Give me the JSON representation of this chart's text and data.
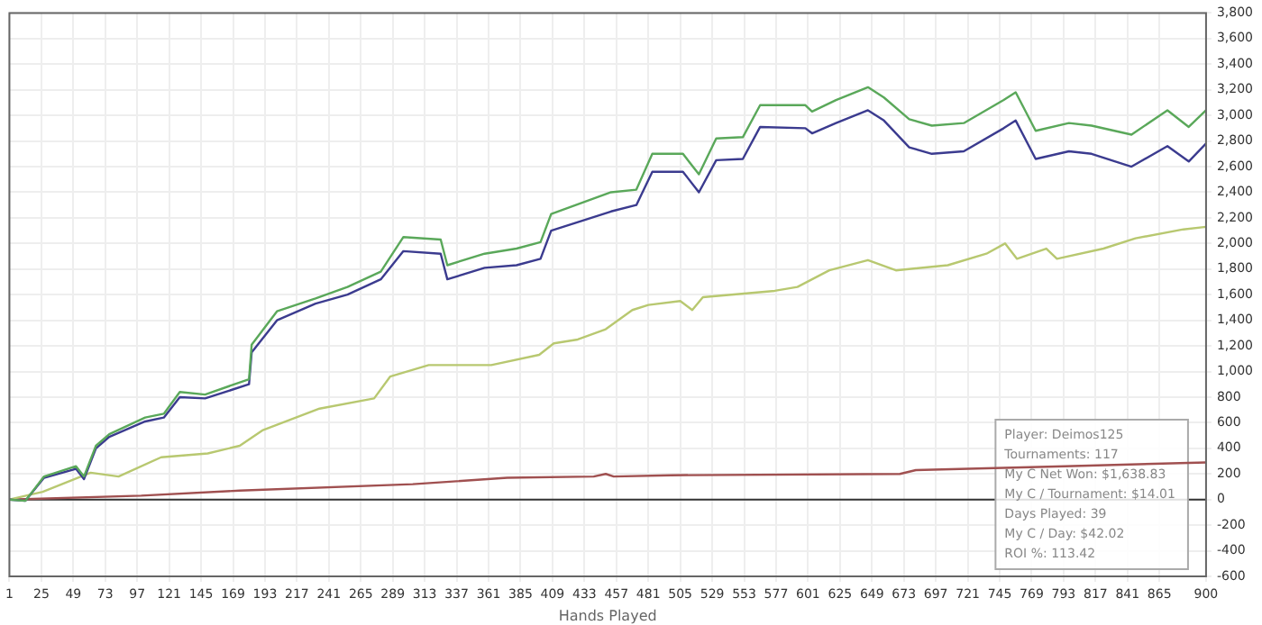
{
  "chart_data": {
    "type": "line",
    "xlabel": "Hands Played",
    "series": [
      {
        "color": "#5aa85a",
        "x": [
          1,
          13,
          27,
          51,
          57,
          66,
          76,
          103,
          117,
          129,
          148,
          181,
          183,
          202,
          231,
          255,
          280,
          297,
          325,
          330,
          358,
          382,
          400,
          408,
          453,
          472,
          484,
          507,
          519,
          532,
          552,
          565,
          599,
          604,
          622,
          646,
          658,
          677,
          694,
          718,
          748,
          757,
          772,
          797,
          814,
          844,
          871,
          887,
          900
        ],
        "values": [
          0,
          -10,
          180,
          260,
          180,
          420,
          510,
          640,
          670,
          840,
          820,
          940,
          1210,
          1470,
          1570,
          1660,
          1780,
          2050,
          2030,
          1830,
          1920,
          1960,
          2010,
          2230,
          2400,
          2420,
          2700,
          2700,
          2540,
          2820,
          2830,
          3080,
          3080,
          3030,
          3120,
          3220,
          3140,
          2970,
          2920,
          2940,
          3120,
          3180,
          2880,
          2940,
          2920,
          2850,
          3040,
          2910,
          3040
        ]
      },
      {
        "color": "#3b3b8f",
        "x": [
          1,
          13,
          27,
          51,
          57,
          66,
          76,
          103,
          117,
          129,
          148,
          181,
          183,
          202,
          231,
          255,
          280,
          297,
          325,
          330,
          358,
          382,
          400,
          408,
          453,
          472,
          484,
          507,
          519,
          532,
          552,
          565,
          599,
          604,
          622,
          646,
          658,
          677,
          694,
          718,
          748,
          757,
          772,
          797,
          814,
          844,
          871,
          887,
          900
        ],
        "values": [
          0,
          -10,
          170,
          240,
          160,
          400,
          490,
          610,
          640,
          800,
          790,
          900,
          1150,
          1400,
          1530,
          1600,
          1720,
          1940,
          1920,
          1720,
          1810,
          1830,
          1880,
          2100,
          2250,
          2300,
          2560,
          2560,
          2400,
          2650,
          2660,
          2910,
          2900,
          2860,
          2940,
          3040,
          2960,
          2750,
          2700,
          2720,
          2900,
          2960,
          2660,
          2720,
          2700,
          2600,
          2760,
          2640,
          2780
        ]
      },
      {
        "color": "#b8c870",
        "x": [
          1,
          26,
          62,
          83,
          115,
          150,
          174,
          191,
          234,
          275,
          287,
          316,
          363,
          399,
          410,
          428,
          449,
          469,
          481,
          505,
          514,
          522,
          576,
          593,
          617,
          646,
          667,
          706,
          735,
          749,
          758,
          780,
          788,
          823,
          847,
          883,
          900
        ],
        "values": [
          0,
          60,
          210,
          180,
          330,
          360,
          420,
          540,
          710,
          790,
          960,
          1050,
          1050,
          1130,
          1220,
          1250,
          1330,
          1480,
          1520,
          1550,
          1480,
          1580,
          1630,
          1660,
          1790,
          1870,
          1790,
          1830,
          1920,
          2000,
          1880,
          1960,
          1880,
          1960,
          2040,
          2110,
          2130
        ]
      },
      {
        "color": "#a05050",
        "x": [
          1,
          100,
          174,
          304,
          375,
          440,
          449,
          455,
          498,
          670,
          682,
          794,
          900
        ],
        "values": [
          0,
          30,
          70,
          120,
          170,
          180,
          200,
          180,
          190,
          200,
          230,
          260,
          290
        ]
      }
    ],
    "xlim": [
      1,
      900
    ],
    "xticks": [
      1,
      25,
      49,
      73,
      97,
      121,
      145,
      169,
      193,
      217,
      241,
      265,
      289,
      313,
      337,
      361,
      385,
      409,
      433,
      457,
      481,
      505,
      529,
      553,
      577,
      601,
      625,
      649,
      673,
      697,
      721,
      745,
      769,
      793,
      817,
      841,
      865,
      900
    ],
    "ylim": [
      -600,
      3800
    ],
    "yticks": [
      -600,
      -400,
      -200,
      0,
      200,
      400,
      600,
      800,
      {
        "value": 1000,
        "label": "1,000"
      },
      {
        "value": 1200,
        "label": "1,200"
      },
      {
        "value": 1400,
        "label": "1,400"
      },
      {
        "value": 1600,
        "label": "1,600"
      },
      {
        "value": 1800,
        "label": "1,800"
      },
      {
        "value": 2000,
        "label": "2,000"
      },
      {
        "value": 2200,
        "label": "2,200"
      },
      {
        "value": 2400,
        "label": "2,400"
      },
      {
        "value": 2600,
        "label": "2,600"
      },
      {
        "value": 2800,
        "label": "2,800"
      },
      {
        "value": 3000,
        "label": "3,000"
      },
      {
        "value": 3200,
        "label": "3,200"
      },
      {
        "value": 3400,
        "label": "3,400"
      },
      {
        "value": 3600,
        "label": "3,600"
      },
      {
        "value": 3800,
        "label": "3,800"
      }
    ],
    "ref_lines": [
      {
        "axis": "y",
        "value": 0,
        "color": "#333333"
      }
    ],
    "annotations": [
      "Player: Deimos125",
      "Tournaments: 117",
      "My C Net Won: $1,638.83",
      "My C / Tournament: $14.01",
      "Days Played: 39",
      "My C / Day: $42.02",
      "ROI %: 113.42"
    ],
    "grid": true,
    "legend": false,
    "marker": "none",
    "line_style": "solid"
  }
}
